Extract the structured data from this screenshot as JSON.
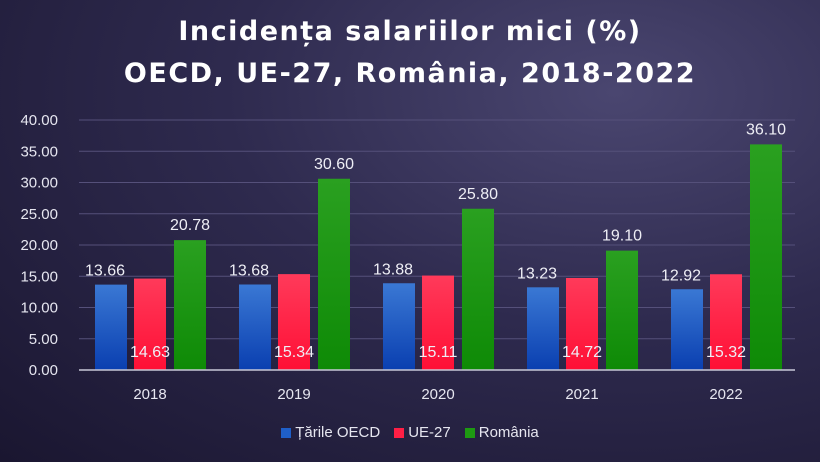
{
  "chart_data": {
    "type": "bar",
    "title": [
      "Incidența salariilor mici (%)",
      "OECD, UE-27, România, 2018-2022"
    ],
    "categories": [
      "2018",
      "2019",
      "2020",
      "2021",
      "2022"
    ],
    "series": [
      {
        "name": "Țările OECD",
        "color": "#1f5fc8",
        "values": [
          13.66,
          13.68,
          13.88,
          13.23,
          12.92
        ]
      },
      {
        "name": "UE-27",
        "color": "#ff1f45",
        "values": [
          14.63,
          15.34,
          15.11,
          14.72,
          15.32
        ]
      },
      {
        "name": "România",
        "color": "#1e9a12",
        "values": [
          20.78,
          30.6,
          25.8,
          19.1,
          36.1
        ]
      }
    ],
    "ylim": [
      0,
      40
    ],
    "yticks": [
      "0.00",
      "5.00",
      "10.00",
      "15.00",
      "20.00",
      "25.00",
      "30.00",
      "35.00",
      "40.00"
    ],
    "grid": true,
    "legend": "bottom",
    "xlabel": "",
    "ylabel": ""
  }
}
